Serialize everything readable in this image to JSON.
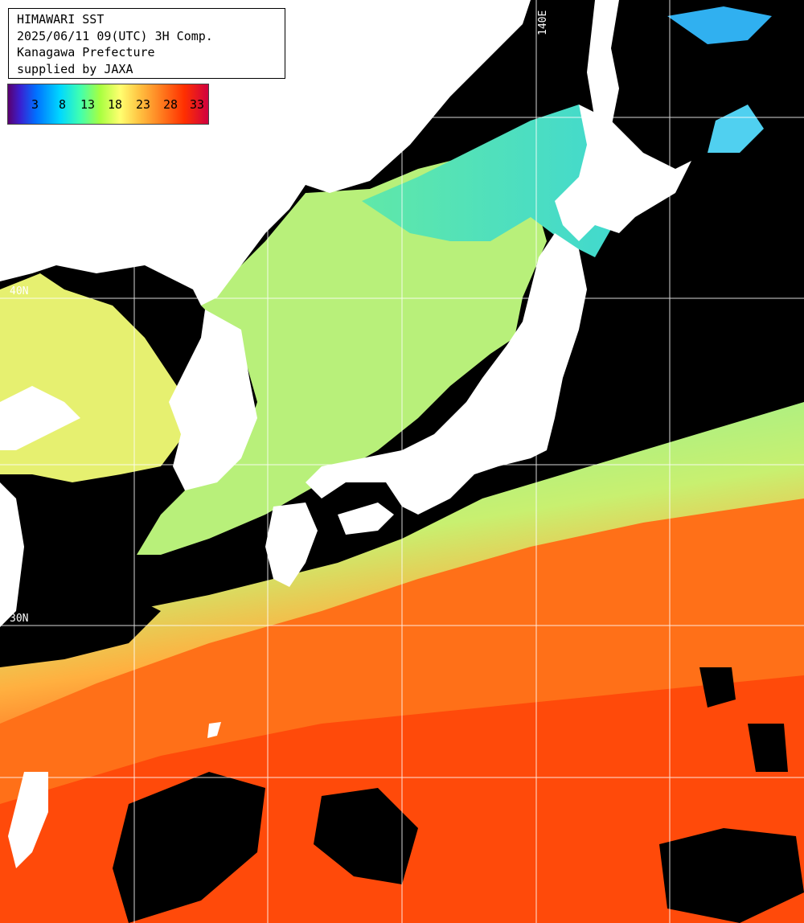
{
  "title": {
    "line1": "HIMAWARI SST",
    "line2": "2025/06/11 09(UTC) 3H Comp.",
    "line3": "Kanagawa Prefecture",
    "line4": "supplied by JAXA"
  },
  "legend": {
    "ticks": [
      "3",
      "8",
      "13",
      "18",
      "23",
      "28",
      "33"
    ]
  },
  "grid": {
    "lon_label_top": "140E",
    "lat_label_a": "40N",
    "lat_label_b": "30N"
  },
  "colors": {
    "land": "#ffffff",
    "cloud": "#000000",
    "grid": "#ffffff",
    "cold_sea": "#a8f070",
    "warm_sea": "#ff6a10"
  }
}
